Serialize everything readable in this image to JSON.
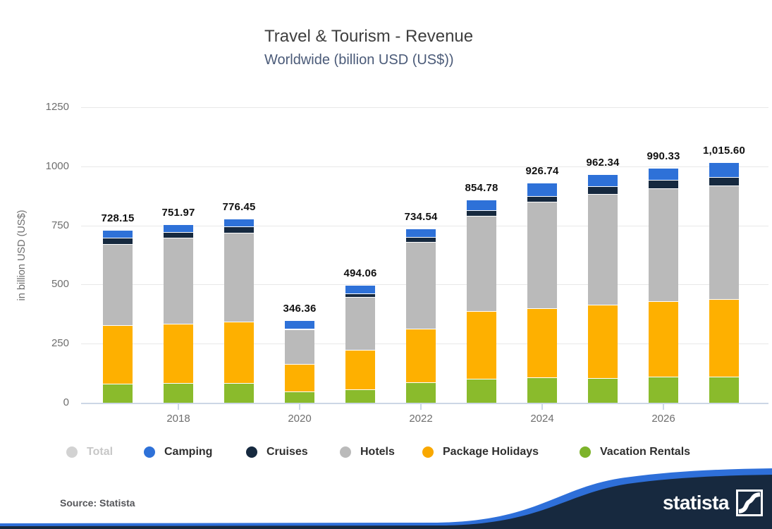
{
  "header": {
    "title": "Travel & Tourism - Revenue",
    "subtitle": "Worldwide (billion USD (US$))"
  },
  "chart_data": {
    "type": "bar",
    "stacked": true,
    "title": "Travel & Tourism - Revenue",
    "subtitle": "Worldwide (billion USD (US$))",
    "ylabel": "in billion USD (US$)",
    "ylim": [
      0,
      1250
    ],
    "yticks": [
      0,
      250,
      500,
      750,
      1000,
      1250
    ],
    "x": [
      2017,
      2018,
      2019,
      2020,
      2021,
      2022,
      2023,
      2024,
      2025,
      2026,
      2027
    ],
    "xtick_labels": [
      "2018",
      "2020",
      "2022",
      "2024",
      "2026"
    ],
    "totals": [
      728.15,
      751.97,
      776.45,
      346.36,
      494.06,
      734.54,
      854.78,
      926.74,
      962.34,
      990.33,
      1015.6
    ],
    "total_labels": [
      "728.15",
      "751.97",
      "776.45",
      "346.36",
      "494.06",
      "734.54",
      "854.78",
      "926.74",
      "962.34",
      "990.33",
      "1,015.60"
    ],
    "series": [
      {
        "name": "Vacation Rentals",
        "color": "#8abb2c",
        "values": [
          78,
          80,
          82,
          46,
          55,
          84,
          98,
          103,
          100,
          108,
          106
        ]
      },
      {
        "name": "Package Holidays",
        "color": "#feb000",
        "values": [
          247,
          251,
          258,
          116,
          165,
          227,
          287,
          295,
          313,
          320,
          331
        ]
      },
      {
        "name": "Hotels",
        "color": "#bababa",
        "values": [
          344,
          364,
          375,
          144,
          224,
          365,
          402,
          448,
          467,
          475,
          478
        ]
      },
      {
        "name": "Cruises",
        "color": "#16293f",
        "values": [
          27,
          23,
          27,
          3,
          16,
          22,
          25,
          25,
          34,
          36,
          38
        ]
      },
      {
        "name": "Camping",
        "color": "#2e71d8",
        "values": [
          32.15,
          33.97,
          34.45,
          37.36,
          34.06,
          36.54,
          42.78,
          55.74,
          48.34,
          51.33,
          62.6
        ]
      }
    ],
    "legend_position": "bottom",
    "grid": true
  },
  "legend": {
    "items": [
      {
        "label": "Total",
        "color": "#d2d2d2",
        "muted": true
      },
      {
        "label": "Camping",
        "color": "#2e71d8",
        "muted": false
      },
      {
        "label": "Cruises",
        "color": "#16293f",
        "muted": false
      },
      {
        "label": "Hotels",
        "color": "#bababa",
        "muted": false
      },
      {
        "label": "Package Holidays",
        "color": "#f9a800",
        "muted": false
      },
      {
        "label": "Vacation Rentals",
        "color": "#7db32a",
        "muted": false
      }
    ]
  },
  "footer": {
    "source_label": "Source: Statista",
    "logo_text": "statista"
  }
}
